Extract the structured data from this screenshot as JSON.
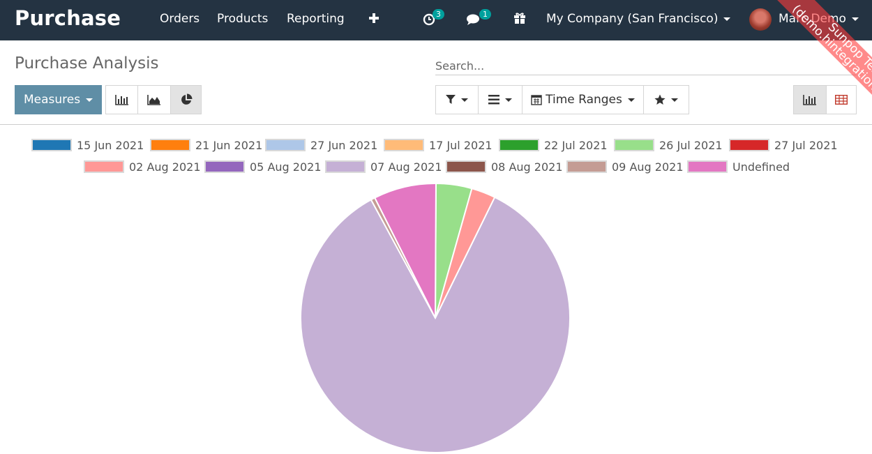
{
  "navbar": {
    "app_title": "Purchase",
    "menu": [
      "Orders",
      "Products",
      "Reporting"
    ],
    "activity_count": "3",
    "messages_count": "1",
    "company": "My Company (San Francisco)",
    "user": "Marc Demo",
    "icons": {
      "plus": "plus-icon",
      "activity": "clock-icon",
      "messages": "chat-icon",
      "gift": "gift-icon"
    }
  },
  "control_panel": {
    "title": "Purchase Analysis",
    "search_placeholder": "Search...",
    "measures_label": "Measures",
    "time_ranges_label": "Time Ranges"
  },
  "ribbon": {
    "line1": "Sunpop Test",
    "line2": "(demo.hintegration.com)"
  },
  "colors": {
    "navbar": "#243342",
    "primary": "#5f8ea6",
    "ribbon": "#ff3c3c"
  },
  "chart_data": {
    "type": "pie",
    "legend": [
      {
        "label": "15 Jun 2021",
        "color": "#1f77b4"
      },
      {
        "label": "21 Jun 2021",
        "color": "#ff7f0e"
      },
      {
        "label": "27 Jun 2021",
        "color": "#aec7e8"
      },
      {
        "label": "17 Jul 2021",
        "color": "#ffbb78"
      },
      {
        "label": "22 Jul 2021",
        "color": "#2ca02c"
      },
      {
        "label": "26 Jul 2021",
        "color": "#98df8a"
      },
      {
        "label": "27 Jul 2021",
        "color": "#d62728"
      },
      {
        "label": "02 Aug 2021",
        "color": "#ff9896"
      },
      {
        "label": "05 Aug 2021",
        "color": "#9467bd"
      },
      {
        "label": "07 Aug 2021",
        "color": "#c5b0d5"
      },
      {
        "label": "08 Aug 2021",
        "color": "#8c564b"
      },
      {
        "label": "09 Aug 2021",
        "color": "#c49c94"
      },
      {
        "label": "Undefined",
        "color": "#e377c2"
      }
    ],
    "slices": [
      {
        "label": "26 Jul 2021",
        "value": 4.3,
        "color": "#98df8a"
      },
      {
        "label": "02 Aug 2021",
        "value": 2.9,
        "color": "#ff9896"
      },
      {
        "label": "07 Aug 2021",
        "value": 84.8,
        "color": "#c5b0d5"
      },
      {
        "label": "09 Aug 2021",
        "value": 0.5,
        "color": "#c49c94"
      },
      {
        "label": "Undefined",
        "value": 7.5,
        "color": "#e377c2"
      }
    ]
  }
}
